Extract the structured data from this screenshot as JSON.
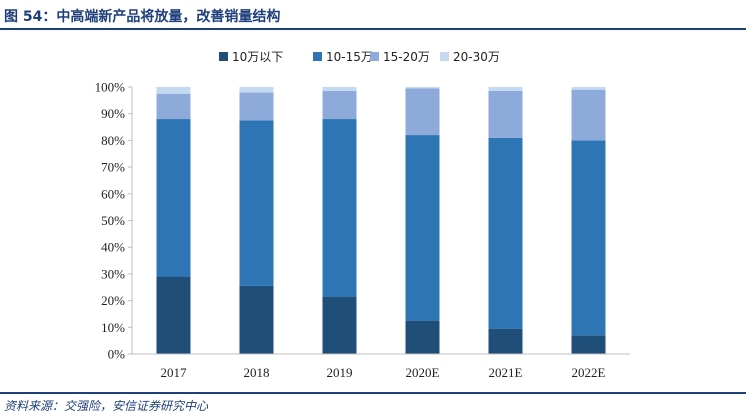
{
  "header": {
    "title": "图 54：中高端新产品将放量，改善销量结构"
  },
  "footer": {
    "source": "资料来源：交强险，安信证券研究中心"
  },
  "chart_data": {
    "type": "bar",
    "stacked": true,
    "categories": [
      "2017",
      "2018",
      "2019",
      "2020E",
      "2021E",
      "2022E"
    ],
    "series": [
      {
        "name": "10万以下",
        "color": "#1f4e79",
        "values": [
          29,
          25.5,
          21.5,
          12.5,
          9.5,
          7
        ]
      },
      {
        "name": "10-15万",
        "color": "#2e75b6",
        "values": [
          59,
          62,
          66.5,
          69.5,
          71.5,
          73
        ]
      },
      {
        "name": "15-20万",
        "color": "#8eaadb",
        "values": [
          9.5,
          10.5,
          10.5,
          17.5,
          17.5,
          19
        ]
      },
      {
        "name": "20-30万",
        "color": "#c5d9f1",
        "values": [
          2.5,
          2,
          1.5,
          0.5,
          1.5,
          1
        ]
      }
    ],
    "yticks": [
      "0%",
      "10%",
      "20%",
      "30%",
      "40%",
      "50%",
      "60%",
      "70%",
      "80%",
      "90%",
      "100%"
    ],
    "ylim": [
      0,
      100
    ],
    "legend_position": "top",
    "grid": false
  }
}
